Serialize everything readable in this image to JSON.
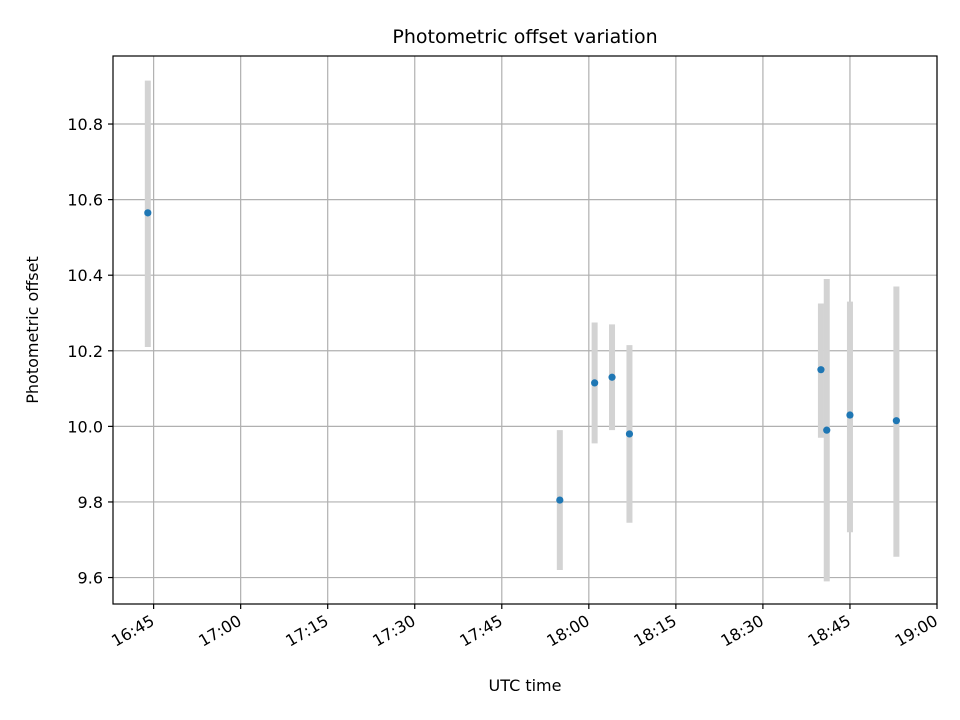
{
  "chart_data": {
    "type": "scatter",
    "title": "Photometric offset variation",
    "xlabel": "UTC time",
    "ylabel": "Photometric offset",
    "date": "",
    "x_ticks": [
      "16:45",
      "17:00",
      "17:15",
      "17:30",
      "17:45",
      "18:00",
      "18:15",
      "18:30",
      "18:45",
      "19:00"
    ],
    "xlim": [
      "16:38",
      "19:00"
    ],
    "y_ticks": [
      "9.6",
      "9.8",
      "10.0",
      "10.2",
      "10.4",
      "10.6",
      "10.8"
    ],
    "ylim": [
      9.53,
      10.98
    ],
    "grid": true,
    "point_color": "#1f77b4",
    "errorbar_color": "#d3d3d3",
    "points": [
      {
        "x": "16:44",
        "y": 10.565,
        "yerr_low": 10.21,
        "yerr_high": 10.915
      },
      {
        "x": "17:55",
        "y": 9.805,
        "yerr_low": 9.62,
        "yerr_high": 9.99
      },
      {
        "x": "18:01",
        "y": 10.115,
        "yerr_low": 9.955,
        "yerr_high": 10.275
      },
      {
        "x": "18:04",
        "y": 10.13,
        "yerr_low": 9.99,
        "yerr_high": 10.27
      },
      {
        "x": "18:07",
        "y": 9.98,
        "yerr_low": 9.745,
        "yerr_high": 10.215
      },
      {
        "x": "18:40",
        "y": 10.15,
        "yerr_low": 9.97,
        "yerr_high": 10.325
      },
      {
        "x": "18:41",
        "y": 9.99,
        "yerr_low": 9.59,
        "yerr_high": 10.39
      },
      {
        "x": "18:45",
        "y": 10.03,
        "yerr_low": 9.72,
        "yerr_high": 10.33
      },
      {
        "x": "18:53",
        "y": 10.015,
        "yerr_low": 9.655,
        "yerr_high": 10.37
      }
    ]
  }
}
